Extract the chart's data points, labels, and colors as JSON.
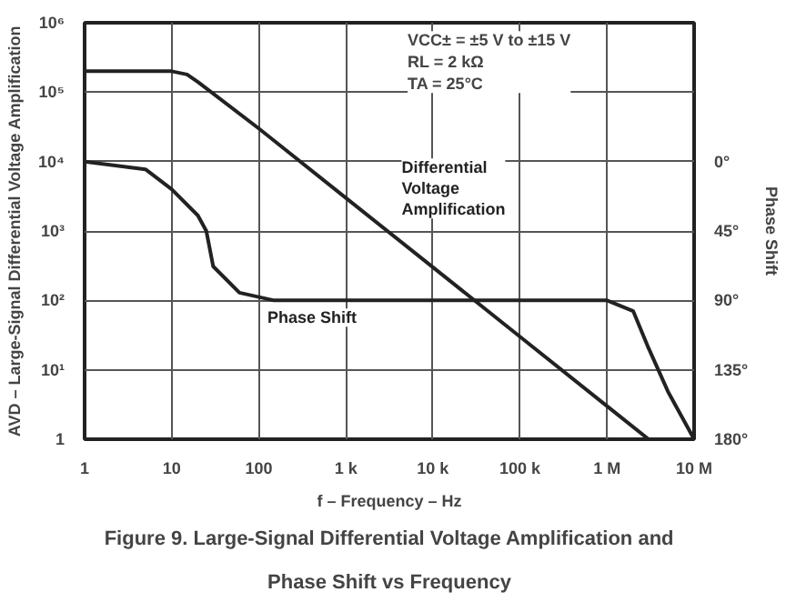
{
  "chart_data": {
    "type": "line",
    "title": "Figure 9. Large-Signal Differential Voltage Amplification and Phase Shift vs Frequency",
    "xlabel": "f – Frequency – Hz",
    "ylabel": "AVD – Large-Signal Differential Voltage Amplification",
    "y2label": "Phase Shift",
    "annotations": [
      "VCC± = ±5 V to ±15 V",
      "RL = 2 kΩ",
      "TA = 25°C"
    ],
    "log": "xy",
    "grid": true,
    "legend": false,
    "marker": "none",
    "line_style": "solid",
    "xlim": [
      1,
      10000000
    ],
    "ylim": [
      1,
      1000000
    ],
    "y2lim": [
      180,
      -90
    ],
    "xticks": [
      1,
      10,
      100,
      {
        "value": 1000,
        "label": "1 k"
      },
      {
        "value": 10000,
        "label": "10 k"
      },
      {
        "value": 100000,
        "label": "100 k"
      },
      {
        "value": 1000000,
        "label": "1 M"
      },
      {
        "value": 10000000,
        "label": "10 M"
      }
    ],
    "yticks": [
      1,
      {
        "value": 10,
        "label": "10¹"
      },
      {
        "value": 100,
        "label": "10²"
      },
      {
        "value": 1000,
        "label": "10³"
      },
      {
        "value": 10000,
        "label": "10⁴"
      },
      {
        "value": 100000,
        "label": "10⁵"
      },
      {
        "value": 1000000,
        "label": "10⁶"
      }
    ],
    "y2ticks": [
      {
        "value": 0,
        "label": "0°"
      },
      {
        "value": 45,
        "label": "45°"
      },
      {
        "value": 90,
        "label": "90°"
      },
      {
        "value": 135,
        "label": "135°"
      },
      {
        "value": 180,
        "label": "180°"
      }
    ],
    "series": [
      {
        "name": "Differential Voltage Amplification",
        "color": "#222222",
        "x": [
          1,
          10,
          15,
          20,
          100,
          1000,
          10000,
          100000,
          1000000,
          3000000
        ],
        "values": [
          200000,
          200000,
          180000,
          140000,
          30000,
          3000,
          300,
          30,
          3,
          1
        ]
      },
      {
        "name": "Phase Shift",
        "color": "#222222",
        "axis": "y2",
        "x": [
          1,
          5,
          10,
          20,
          25,
          30,
          60,
          150,
          1000,
          100000,
          1000000,
          2000000,
          3000000,
          5000000,
          10000000
        ],
        "values": [
          0,
          5,
          18,
          35,
          45,
          68,
          85,
          90,
          90,
          90,
          90,
          97,
          121,
          149,
          180
        ]
      }
    ]
  }
}
